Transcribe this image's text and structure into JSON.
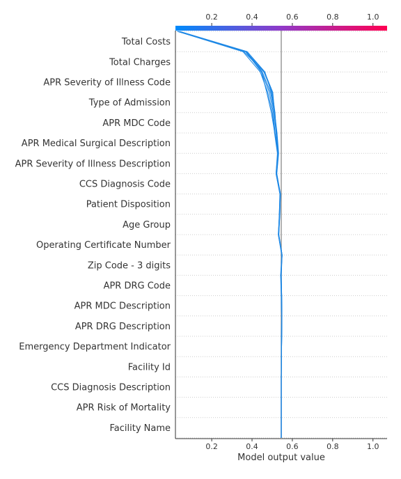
{
  "chart_data": {
    "type": "line",
    "xlabel": "Model output value",
    "xlim": [
      0.02,
      1.07
    ],
    "base_value": 0.545,
    "ticks": [
      0.2,
      0.4,
      0.6,
      0.8,
      1.0
    ],
    "tick_labels": [
      "0.2",
      "0.4",
      "0.6",
      "0.8",
      "1.0"
    ],
    "colorbar": {
      "from": "#008bfb",
      "mid": "#9039c8",
      "to": "#ff0052",
      "range": [
        0.02,
        1.07
      ]
    },
    "line_color": "#1e88e5",
    "grid": "dotted-horizontal",
    "features": [
      "Total Costs",
      "Total Charges",
      "APR Severity of Illness Code",
      "Type of Admission",
      "APR MDC Code",
      "APR Medical Surgical Description",
      "APR Severity of Illness Description",
      "CCS Diagnosis Code",
      "Patient Disposition",
      "Age Group",
      "Operating Certificate Number",
      "Zip Code - 3 digits",
      "APR DRG Code",
      "APR MDC Description",
      "APR DRG Description",
      "Emergency Department Indicator",
      "Facility Id",
      "CCS Diagnosis Description",
      "APR Risk of Mortality",
      "Facility Name"
    ],
    "series": [
      {
        "values": [
          0.545,
          0.545,
          0.545,
          0.545,
          0.546,
          0.547,
          0.548,
          0.547,
          0.544,
          0.549,
          0.533,
          0.537,
          0.541,
          0.522,
          0.531,
          0.521,
          0.513,
          0.496,
          0.464,
          0.376,
          0.04
        ]
      },
      {
        "values": [
          0.545,
          0.545,
          0.545,
          0.545,
          0.546,
          0.547,
          0.548,
          0.547,
          0.543,
          0.549,
          0.532,
          0.538,
          0.541,
          0.523,
          0.532,
          0.524,
          0.512,
          0.503,
          0.462,
          0.37,
          0.03
        ]
      },
      {
        "values": [
          0.545,
          0.545,
          0.545,
          0.545,
          0.546,
          0.547,
          0.548,
          0.546,
          0.543,
          0.548,
          0.531,
          0.536,
          0.54,
          0.521,
          0.53,
          0.52,
          0.514,
          0.5,
          0.459,
          0.36,
          0.03
        ]
      },
      {
        "values": [
          0.545,
          0.545,
          0.545,
          0.545,
          0.546,
          0.547,
          0.547,
          0.545,
          0.542,
          0.548,
          0.532,
          0.535,
          0.539,
          0.519,
          0.528,
          0.519,
          0.51,
          0.492,
          0.451,
          0.373,
          0.03
        ]
      },
      {
        "values": [
          0.545,
          0.545,
          0.545,
          0.545,
          0.545,
          0.546,
          0.547,
          0.546,
          0.545,
          0.547,
          0.531,
          0.537,
          0.54,
          0.52,
          0.529,
          0.514,
          0.506,
          0.486,
          0.447,
          0.368,
          0.03
        ]
      },
      {
        "values": [
          0.545,
          0.545,
          0.545,
          0.545,
          0.546,
          0.546,
          0.547,
          0.545,
          0.544,
          0.548,
          0.53,
          0.536,
          0.538,
          0.519,
          0.526,
          0.512,
          0.501,
          0.478,
          0.441,
          0.355,
          0.03
        ]
      },
      {
        "values": [
          0.545,
          0.545,
          0.545,
          0.545,
          0.546,
          0.547,
          0.548,
          0.547,
          0.545,
          0.549,
          0.533,
          0.538,
          0.541,
          0.522,
          0.531,
          0.513,
          0.496,
          0.473,
          0.447,
          0.371,
          0.03
        ]
      }
    ]
  }
}
